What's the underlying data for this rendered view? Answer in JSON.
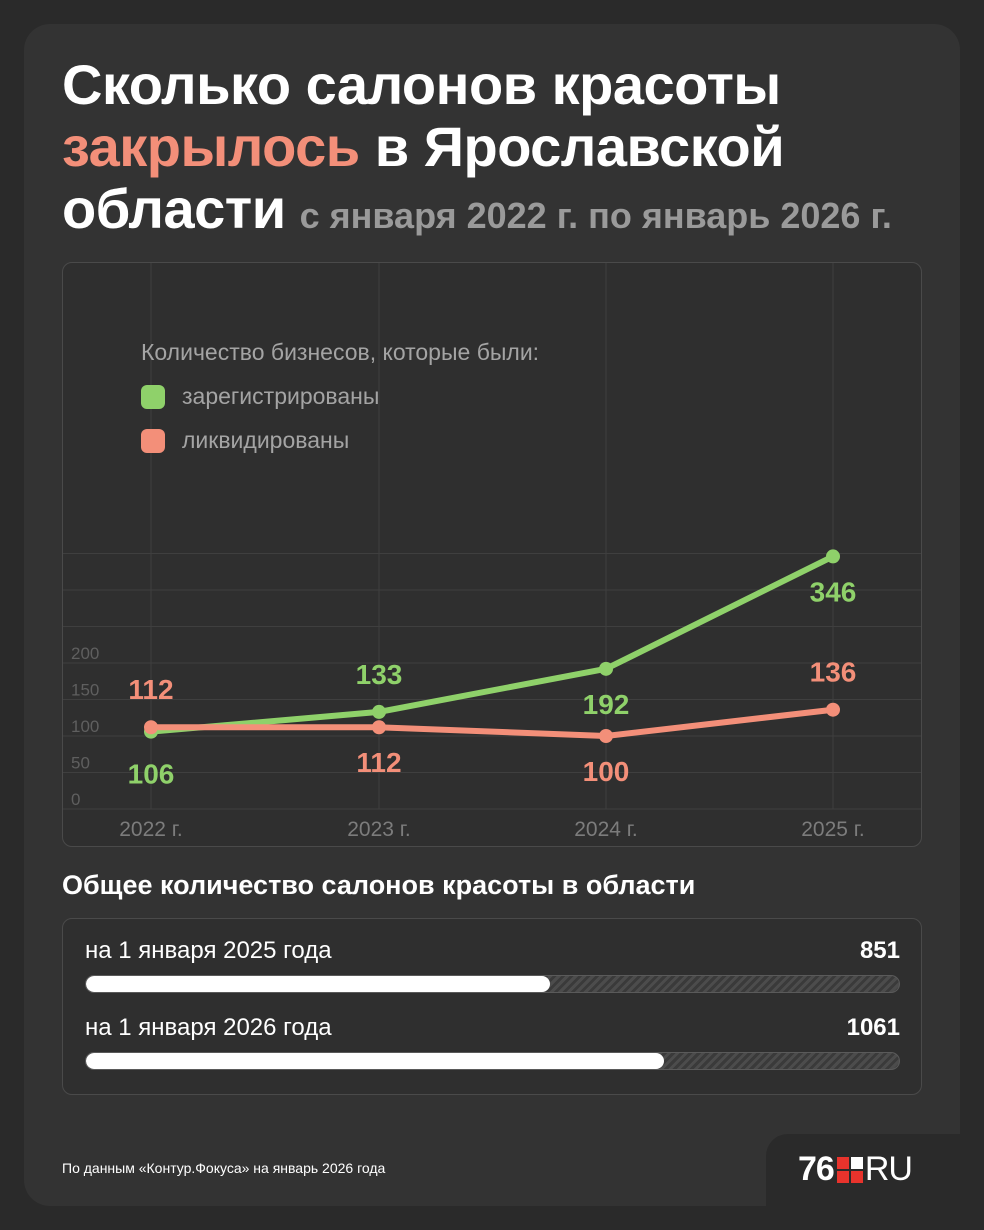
{
  "title": {
    "line1": "Сколько салонов красоты",
    "accent": "закрылось",
    "line2_rest": "в Ярославской",
    "line3": "области",
    "subtitle": "с января 2022 г. по январь 2026 г."
  },
  "colors": {
    "registered": "#8fd16a",
    "liquidated": "#f38f79",
    "background": "#333333"
  },
  "chart_data": {
    "type": "line",
    "categories": [
      "2022 г.",
      "2023 г.",
      "2024 г.",
      "2025 г."
    ],
    "legend_title": "Количество бизнесов, которые были:",
    "legend_placement": "top-left",
    "grid": true,
    "ylim": [
      0,
      350
    ],
    "yticks": [
      "0",
      "50",
      "100",
      "150",
      "200"
    ],
    "series": [
      {
        "name": "зарегистрированы",
        "values": [
          106,
          133,
          192,
          346
        ],
        "labels": [
          "106",
          "133",
          "192",
          "346"
        ]
      },
      {
        "name": "ликвидированы",
        "values": [
          112,
          112,
          100,
          136
        ],
        "labels": [
          "112",
          "112",
          "100",
          "136"
        ]
      }
    ]
  },
  "totals": {
    "title": "Общее количество салонов красоты в области",
    "max": 1400,
    "rows": [
      {
        "label": "на 1 января 2025 года",
        "value": "851",
        "fraction": 0.571
      },
      {
        "label": "на 1 января 2026 года",
        "value": "1061",
        "fraction": 0.711
      }
    ]
  },
  "footer": {
    "source": "По данным «Контур.Фокуса» на январь 2026 года",
    "logo_num": "76",
    "logo_ru": "RU"
  }
}
